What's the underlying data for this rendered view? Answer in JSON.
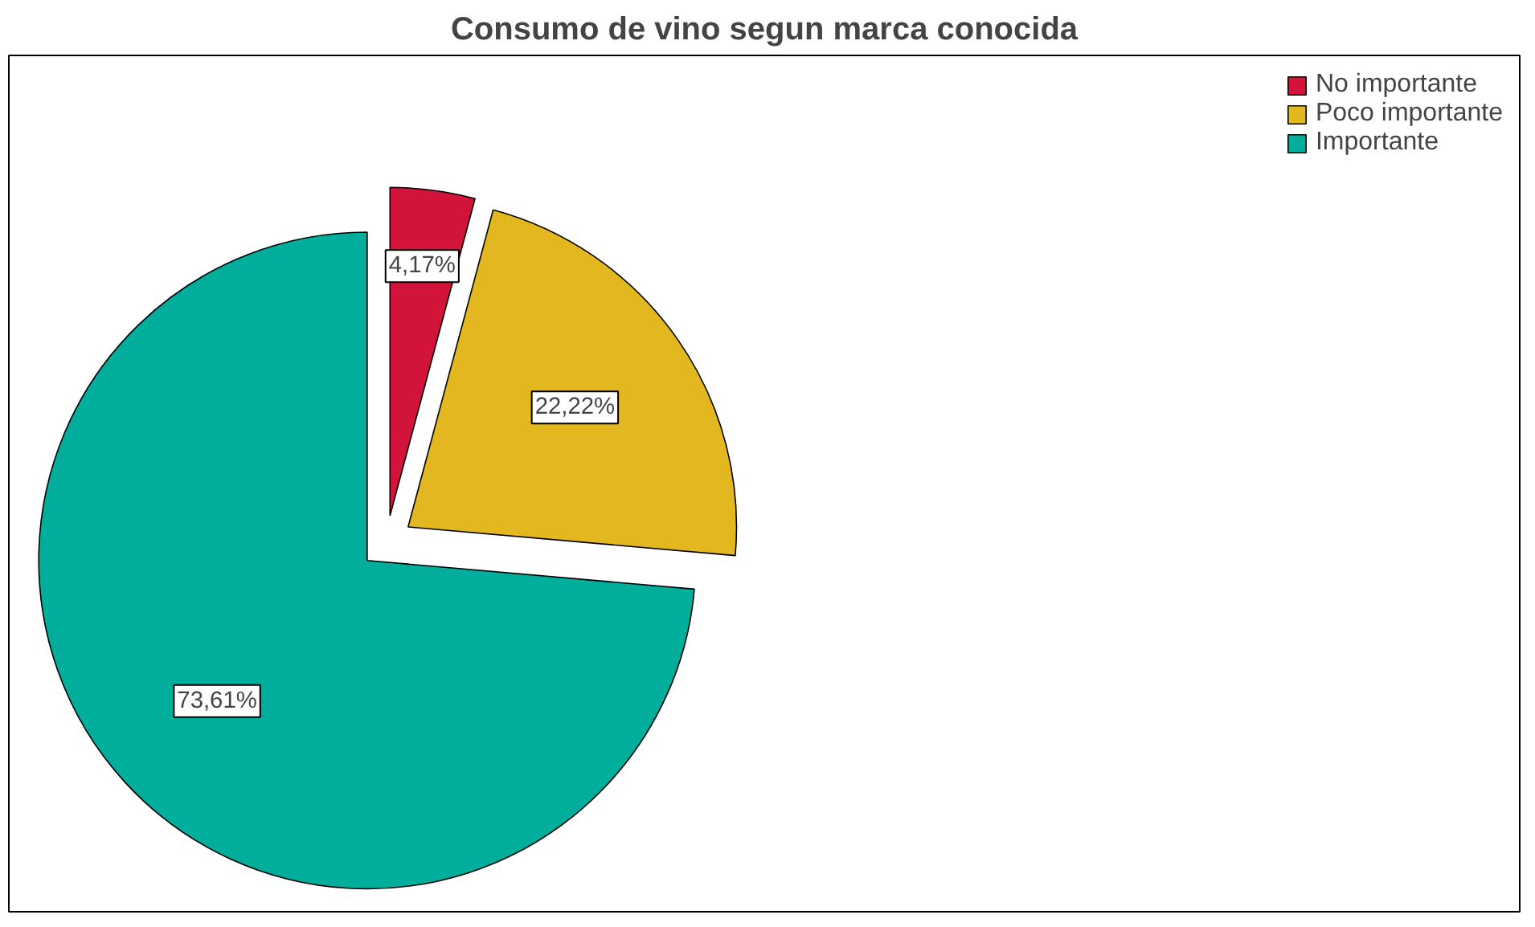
{
  "chart_data": {
    "type": "pie",
    "title": "Consumo de vino segun marca conocida",
    "categories": [
      "No importante",
      "Poco importante",
      "Importante"
    ],
    "values": [
      4.17,
      22.22,
      73.61
    ],
    "colors": [
      "#d2143a",
      "#e2b71f",
      "#00ae9b"
    ],
    "value_labels": [
      "4,17%",
      "22,22%",
      "73,61%"
    ],
    "legend": "top right"
  }
}
